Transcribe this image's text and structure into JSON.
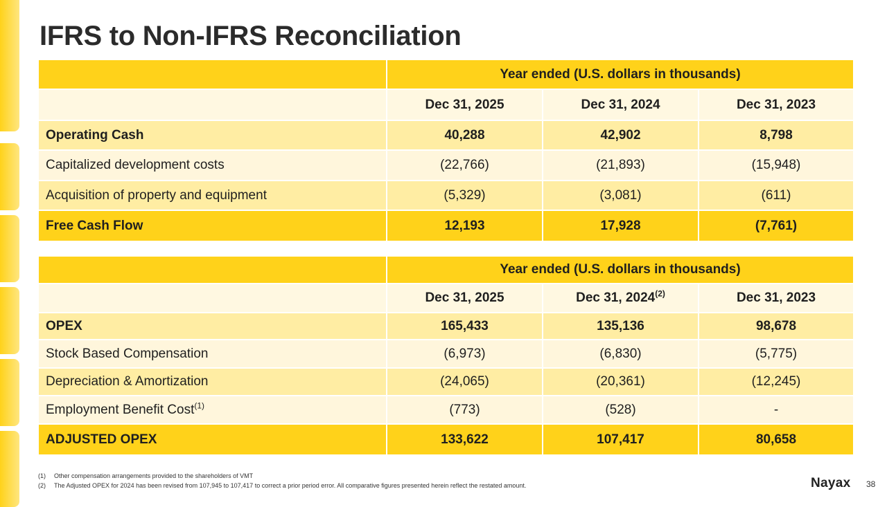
{
  "title": "IFRS to Non-IFRS Reconciliation",
  "table1": {
    "header": "Year ended (U.S. dollars in thousands)",
    "dates": [
      "Dec 31, 2025",
      "Dec 31, 2024",
      "Dec 31, 2023"
    ],
    "rows": [
      {
        "label": "Operating Cash",
        "values": [
          "40,288",
          "42,902",
          "8,798"
        ]
      },
      {
        "label": "Capitalized development costs",
        "values": [
          "(22,766)",
          "(21,893)",
          "(15,948)"
        ]
      },
      {
        "label": "Acquisition of property and equipment",
        "values": [
          "(5,329)",
          "(3,081)",
          "(611)"
        ]
      },
      {
        "label": "Free Cash Flow",
        "values": [
          "12,193",
          "17,928",
          "(7,761)"
        ]
      }
    ]
  },
  "table2": {
    "header": "Year ended (U.S. dollars in thousands)",
    "dates": [
      "Dec 31, 2025",
      "Dec 31, 2024",
      "Dec 31, 2023"
    ],
    "date_note": "(2)",
    "rows": [
      {
        "label": "OPEX",
        "values": [
          "165,433",
          "135,136",
          "98,678"
        ]
      },
      {
        "label": "Stock Based Compensation",
        "values": [
          "(6,973)",
          "(6,830)",
          "(5,775)"
        ]
      },
      {
        "label": "Depreciation & Amortization",
        "values": [
          "(24,065)",
          "(20,361)",
          "(12,245)"
        ]
      },
      {
        "label": "Employment Benefit Cost",
        "note": "(1)",
        "values": [
          "(773)",
          "(528)",
          "-"
        ]
      },
      {
        "label": "ADJUSTED OPEX",
        "values": [
          "133,622",
          "107,417",
          "80,658"
        ]
      }
    ]
  },
  "footnotes": [
    {
      "num": "(1)",
      "text": "Other compensation arrangements provided to the shareholders of VMT"
    },
    {
      "num": "(2)",
      "text": "The Adjusted OPEX for 2024 has been revised from 107,945 to 107,417 to correct a prior period error. All comparative figures presented herein reflect the restated amount."
    }
  ],
  "logo": {
    "text_main": "Nayax",
    "accent": "#ffc800"
  },
  "page_number": "38",
  "colors": {
    "brand_yellow": "#ffd21a",
    "light_row": "#fff6dc",
    "mid_row": "#ffeda3"
  }
}
